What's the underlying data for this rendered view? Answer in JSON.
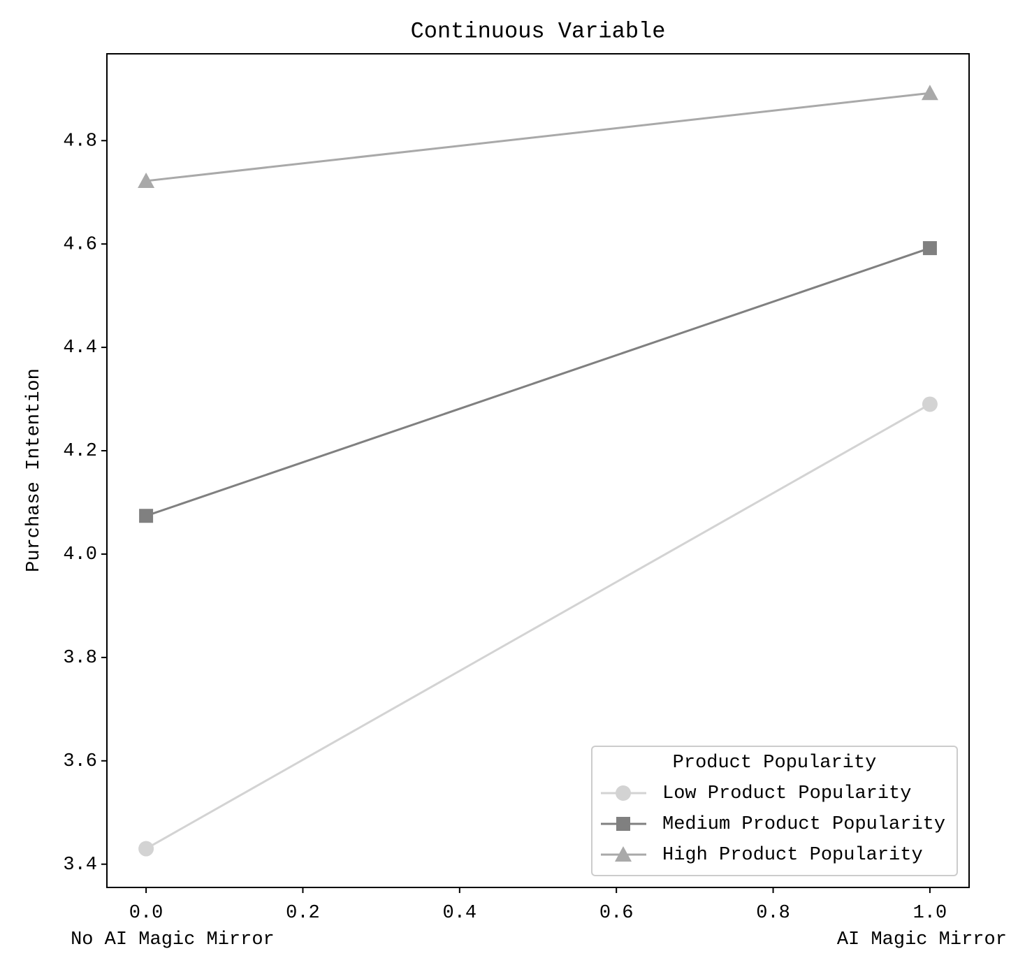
{
  "chart_data": {
    "type": "line",
    "title": "Continuous Variable",
    "y_label": "Purchase Intention",
    "x": [
      0,
      1
    ],
    "x_annotations": [
      {
        "x": 0,
        "label": "No AI Magic Mirror"
      },
      {
        "x": 1,
        "label": "AI Magic Mirror"
      }
    ],
    "series": [
      {
        "name": "Low Product Popularity",
        "color": "#d3d3d3",
        "marker": "circle",
        "values": [
          3.43,
          4.29
        ]
      },
      {
        "name": "Medium Product Popularity",
        "color": "#808080",
        "marker": "square",
        "values": [
          4.074,
          4.592
        ]
      },
      {
        "name": "High Product Popularity",
        "color": "#a9a9a9",
        "marker": "triangle",
        "values": [
          4.722,
          4.892
        ]
      }
    ],
    "xlim": [
      -0.05,
      1.05
    ],
    "xticks": [
      {
        "value": 0,
        "label": "0.0"
      },
      0.2,
      0.4,
      0.6,
      0.8,
      {
        "value": 1,
        "label": "1.0"
      }
    ],
    "ylim": [
      3.355,
      4.968
    ],
    "yticks": [
      3.4,
      3.6,
      3.8,
      {
        "value": 4,
        "label": "4.0"
      },
      4.2,
      4.4,
      4.6,
      4.8
    ],
    "grid": false,
    "legend_title": "Product Popularity",
    "legend_loc": "lower right"
  }
}
